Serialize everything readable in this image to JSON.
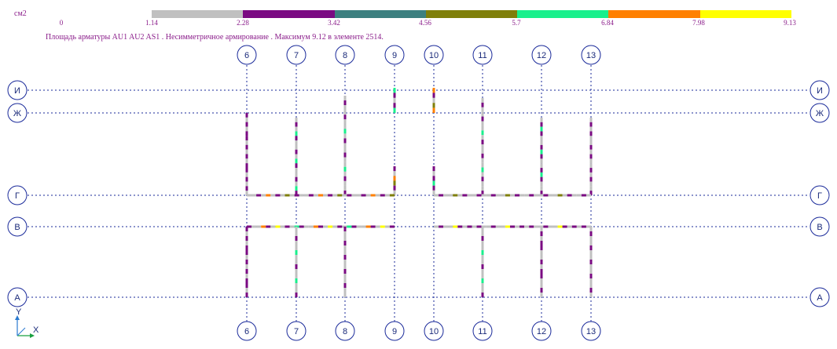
{
  "legend": {
    "unit": "см2",
    "ticks": [
      "0",
      "1.14",
      "2.28",
      "3.42",
      "4.56",
      "5.7",
      "6.84",
      "7.98",
      "9.13"
    ],
    "colors": [
      "#c0c0c0",
      "#7a0a82",
      "#3d8080",
      "#7f7f0a",
      "#19f08c",
      "#ff8000",
      "#ffff00"
    ]
  },
  "caption": "Площадь арматуры AU1 AU2 AS1 . Несимметричное армирование . Максимум 9.12 в элементе 2514.",
  "axes": {
    "vertical": [
      "6",
      "7",
      "8",
      "9",
      "10",
      "11",
      "12",
      "13"
    ],
    "horizontal": [
      "И",
      "Ж",
      "Г",
      "В",
      "А"
    ]
  },
  "coord": {
    "y_label": "Y",
    "x_label": "X"
  },
  "colors": {
    "label_text": "#1a2a7a",
    "circle_stroke": "#1a2a9a",
    "grid_line": "#1a2a9a"
  }
}
